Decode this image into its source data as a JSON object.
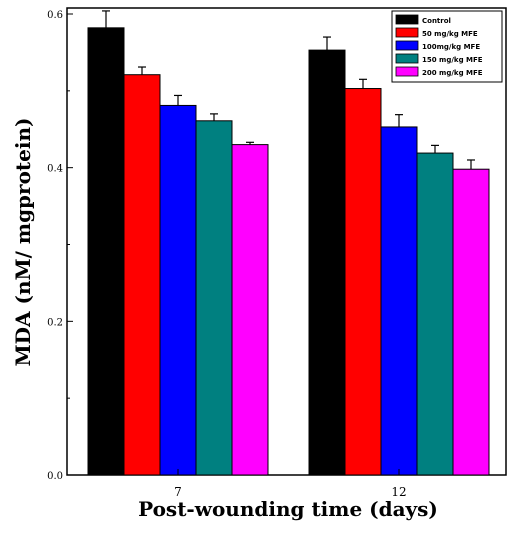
{
  "chart_data": {
    "type": "bar",
    "categories": [
      "7",
      "12"
    ],
    "series": [
      {
        "name": "Control",
        "values": [
          0.582,
          0.553
        ],
        "errors": [
          0.022,
          0.017
        ],
        "color": "#000000"
      },
      {
        "name": "50 mg/kg MFE",
        "values": [
          0.521,
          0.503
        ],
        "errors": [
          0.01,
          0.012
        ],
        "color": "#ff0000"
      },
      {
        "name": "100mg/kg MFE",
        "values": [
          0.481,
          0.453
        ],
        "errors": [
          0.013,
          0.016
        ],
        "color": "#0000ff"
      },
      {
        "name": "150 mg/kg MFE",
        "values": [
          0.461,
          0.419
        ],
        "errors": [
          0.009,
          0.01
        ],
        "color": "#008080"
      },
      {
        "name": "200 mg/kg MFE",
        "values": [
          0.43,
          0.398
        ],
        "errors": [
          0.003,
          0.012
        ],
        "color": "#ff00ff"
      }
    ],
    "title": "",
    "xlabel": "Post-wounding time (days)",
    "ylabel": "MDA (nM/ mgprotein)",
    "ylim": [
      0,
      0.6
    ],
    "yticks": [
      0.0,
      0.2,
      0.4,
      0.6
    ],
    "ytick_labels": [
      "0.0",
      "0.2",
      "0.4",
      "0.6"
    ],
    "grid": false,
    "legend_position": "top-right"
  }
}
